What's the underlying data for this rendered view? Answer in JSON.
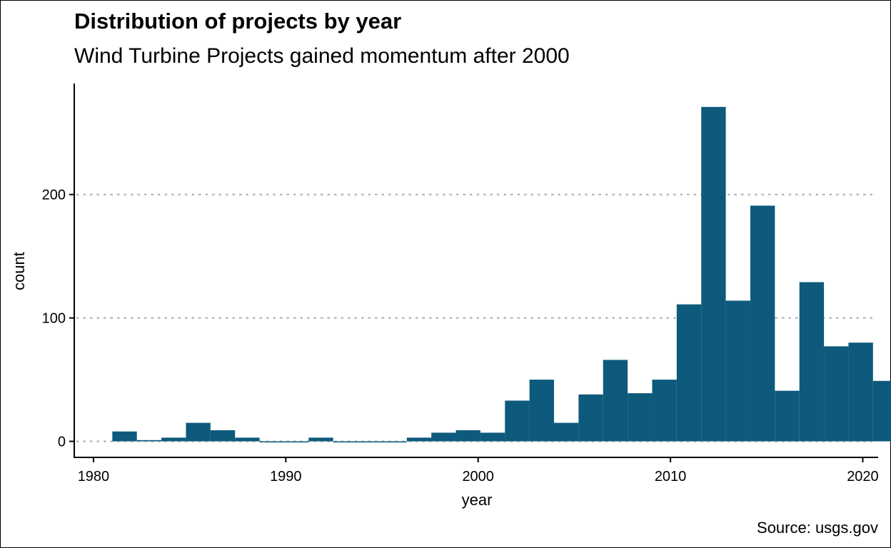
{
  "chart_data": {
    "type": "bar",
    "title": "Distribution of projects by year",
    "subtitle": "Wind Turbine Projects gained momentum after 2000",
    "caption": "Source: usgs.gov",
    "xlabel": "year",
    "ylabel": "count",
    "bar_color": "#0d5a7c",
    "grid_color": "#b3b3b3",
    "xlim": [
      1979,
      2020.8
    ],
    "ylim": [
      -13,
      290
    ],
    "xticks": [
      1980,
      1990,
      2000,
      2010,
      2020
    ],
    "yticks": [
      0,
      100,
      200
    ],
    "bin_width": 1.2759,
    "bin_start": 1980.98,
    "values": [
      8,
      1,
      3,
      15,
      9,
      3,
      0,
      0,
      3,
      0,
      0,
      0,
      3,
      7,
      9,
      7,
      33,
      50,
      15,
      38,
      66,
      39,
      50,
      111,
      271,
      114,
      191,
      41,
      129,
      77,
      80,
      49
    ]
  }
}
